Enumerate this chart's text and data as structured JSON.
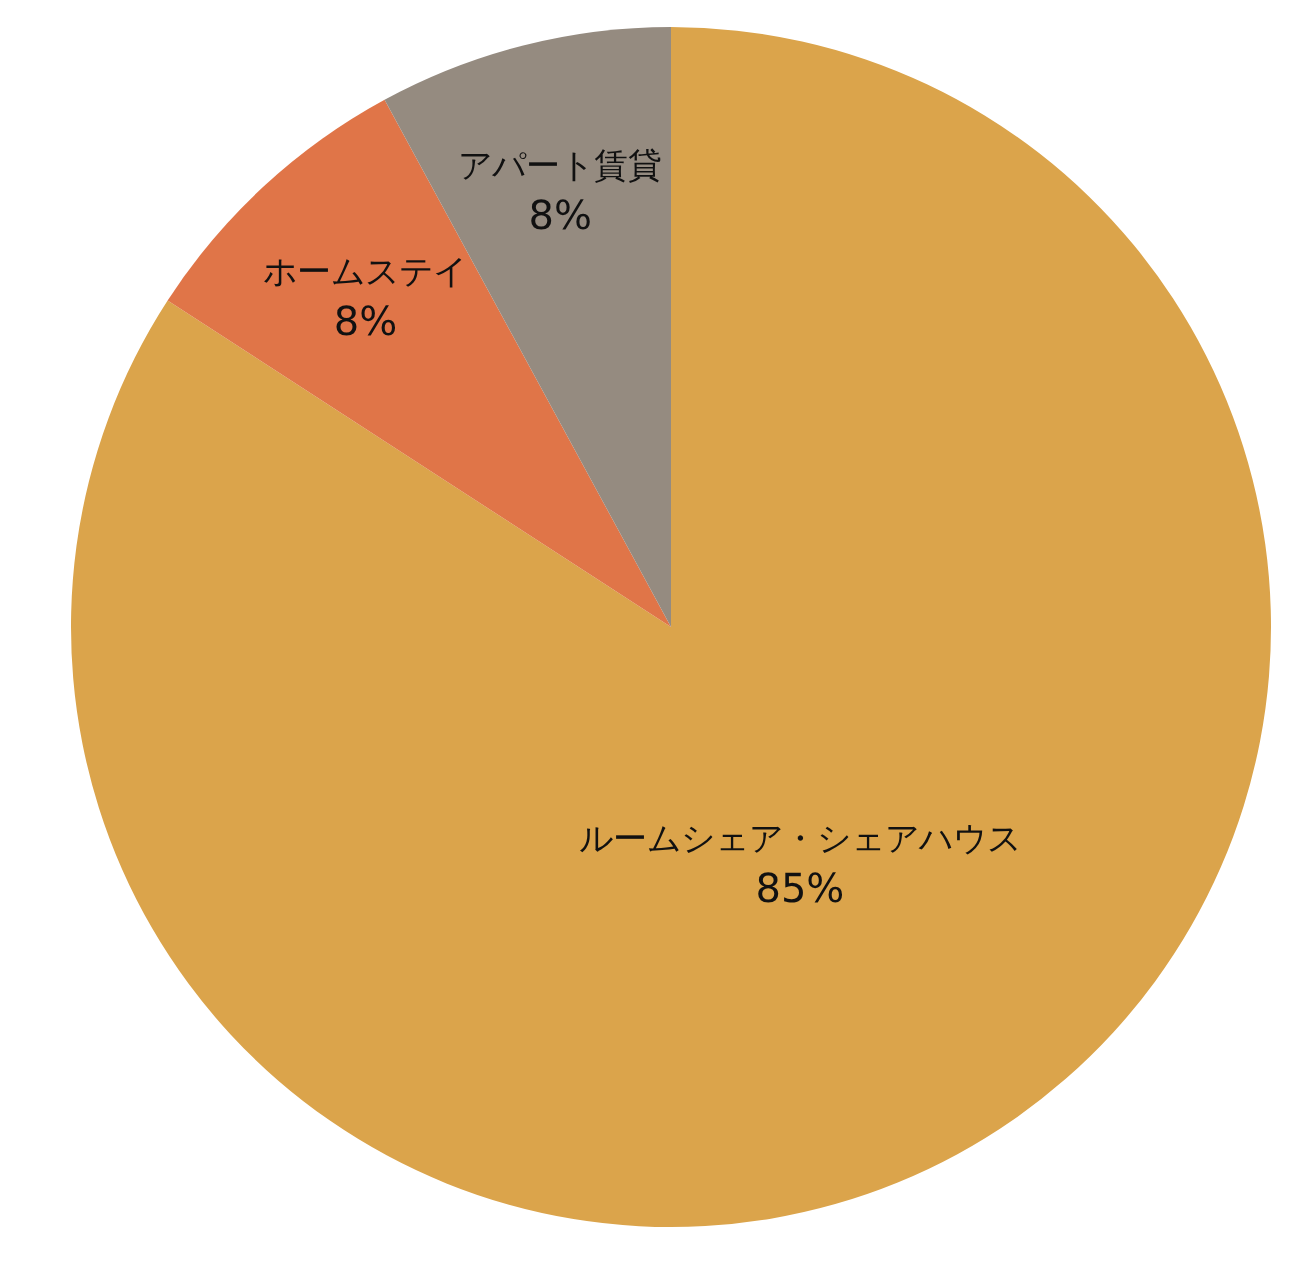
{
  "chart_data": {
    "type": "pie",
    "categories": [
      "ルームシェア・シェアハウス",
      "ホームステイ",
      "アパート賃貸"
    ],
    "values": [
      85,
      8,
      8
    ],
    "colors": [
      "#dba44b",
      "#e07548",
      "#958b80"
    ],
    "value_labels": [
      "85%",
      "8%",
      "8%"
    ]
  }
}
